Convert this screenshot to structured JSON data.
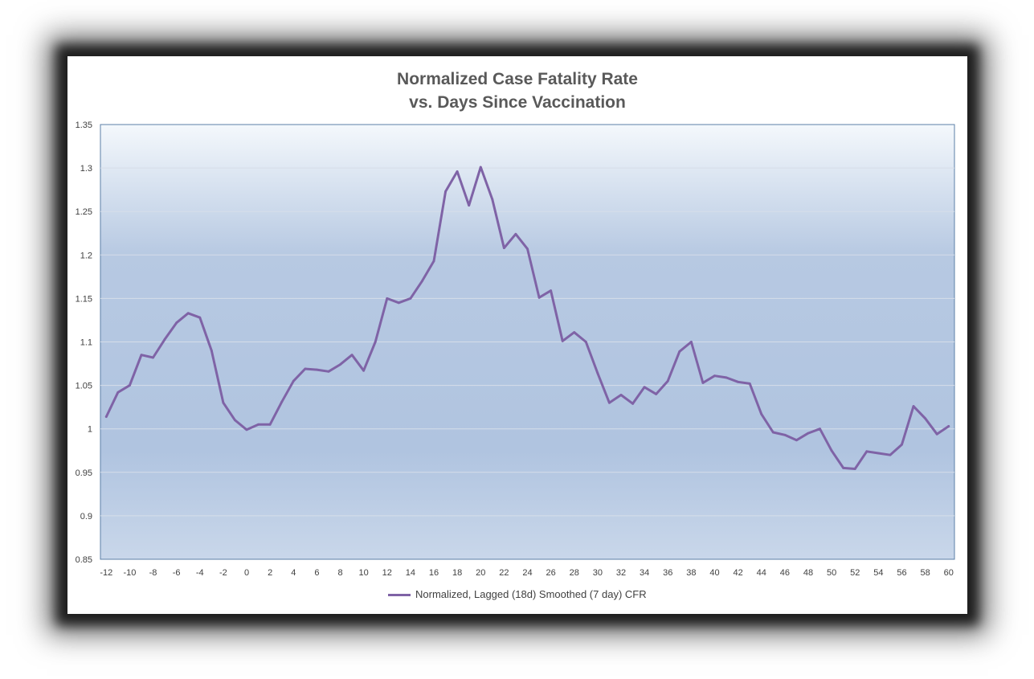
{
  "chart_data": {
    "type": "line",
    "title": "Normalized Case Fatality Rate",
    "subtitle": "vs. Days Since Vaccination",
    "xlabel": "",
    "ylabel": "",
    "xlim": [
      -12.5,
      60.5
    ],
    "ylim": [
      0.85,
      1.35
    ],
    "y_ticks": [
      0.85,
      0.9,
      0.95,
      1,
      1.05,
      1.1,
      1.15,
      1.2,
      1.25,
      1.3,
      1.35
    ],
    "x_ticks": [
      -12,
      -10,
      -8,
      -6,
      -4,
      -2,
      0,
      2,
      4,
      6,
      8,
      10,
      12,
      14,
      16,
      18,
      20,
      22,
      24,
      26,
      28,
      30,
      32,
      34,
      36,
      38,
      40,
      42,
      44,
      46,
      48,
      50,
      52,
      54,
      56,
      58,
      60
    ],
    "grid": true,
    "legend_position": "bottom",
    "color": "#7f63a6",
    "series": [
      {
        "name": "Normalized, Lagged (18d) Smoothed (7 day) CFR",
        "x": [
          -12,
          -11,
          -10,
          -9,
          -8,
          -7,
          -6,
          -5,
          -4,
          -3,
          -2,
          -1,
          0,
          1,
          2,
          3,
          4,
          5,
          6,
          7,
          8,
          9,
          10,
          11,
          12,
          13,
          14,
          15,
          16,
          17,
          18,
          19,
          20,
          21,
          22,
          23,
          24,
          25,
          26,
          27,
          28,
          29,
          30,
          31,
          32,
          33,
          34,
          35,
          36,
          37,
          38,
          39,
          40,
          41,
          42,
          43,
          44,
          45,
          46,
          47,
          48,
          49,
          50,
          51,
          52,
          53,
          54,
          55,
          56,
          57,
          58,
          59,
          60
        ],
        "values": [
          1.014,
          1.042,
          1.05,
          1.085,
          1.082,
          1.103,
          1.122,
          1.133,
          1.128,
          1.09,
          1.03,
          1.01,
          0.999,
          1.005,
          1.005,
          1.031,
          1.055,
          1.069,
          1.068,
          1.066,
          1.074,
          1.085,
          1.067,
          1.1,
          1.15,
          1.145,
          1.15,
          1.17,
          1.193,
          1.273,
          1.296,
          1.257,
          1.301,
          1.264,
          1.208,
          1.224,
          1.207,
          1.151,
          1.159,
          1.101,
          1.111,
          1.1,
          1.064,
          1.03,
          1.039,
          1.029,
          1.048,
          1.04,
          1.055,
          1.089,
          1.1,
          1.053,
          1.061,
          1.059,
          1.054,
          1.052,
          1.017,
          0.996,
          0.993,
          0.987,
          0.995,
          1.0,
          0.975,
          0.955,
          0.954,
          0.974,
          0.972,
          0.97,
          0.982,
          1.026,
          1.012,
          0.994,
          1.003
        ]
      }
    ]
  }
}
